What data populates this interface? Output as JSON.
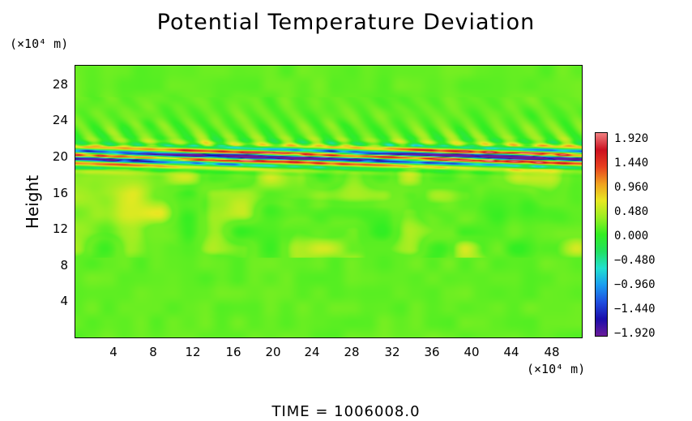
{
  "chart_data": {
    "type": "heatmap",
    "title": "Potential Temperature Deviation",
    "ylabel": "Height",
    "y_unit": "(×10⁴ m)",
    "x_unit": "(×10⁴ m)",
    "xlim": [
      0,
      52
    ],
    "ylim": [
      0,
      30.5
    ],
    "x_ticks": [
      "4",
      "8",
      "12",
      "16",
      "20",
      "24",
      "28",
      "32",
      "36",
      "40",
      "44",
      "48"
    ],
    "y_ticks": [
      "4",
      "8",
      "12",
      "16",
      "20",
      "24",
      "28"
    ],
    "colorbar": {
      "range": [
        -1.92,
        1.92
      ],
      "tick_labels": [
        "1.920",
        "1.440",
        "0.960",
        "0.480",
        "0.000",
        "−0.480",
        "−0.960",
        "−1.440",
        "−1.920"
      ],
      "tick_values": [
        1.92,
        1.44,
        0.96,
        0.48,
        0.0,
        -0.48,
        -0.96,
        -1.44,
        -1.92
      ],
      "colors": [
        "#6a1b9a",
        "#1a0dab",
        "#1f4fe0",
        "#1a9cf0",
        "#22e0d0",
        "#22e060",
        "#33ee22",
        "#9aee22",
        "#e8e822",
        "#f0a020",
        "#e84020",
        "#cc1020",
        "#f08080"
      ]
    },
    "background_value": 0.15,
    "features": [
      {
        "name": "upper wave band",
        "y_center": 20.3,
        "y_span": [
          19.5,
          22.5
        ],
        "x_span": [
          0,
          52
        ],
        "amplitude": 1.92
      },
      {
        "name": "weak turbulent structures",
        "y_span": [
          10,
          19
        ],
        "x_span": [
          0,
          52
        ],
        "amplitude": 0.5
      }
    ]
  },
  "footer": {
    "time_label": "TIME  =  1006008.0"
  }
}
